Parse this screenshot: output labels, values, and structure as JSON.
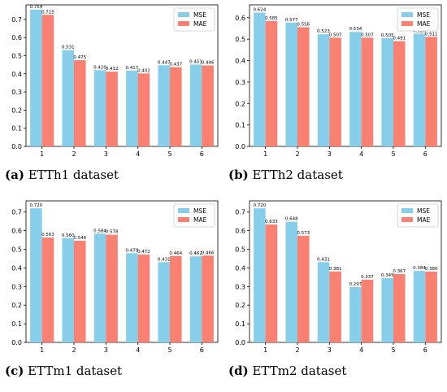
{
  "colors": {
    "mse": "#87CEEB",
    "mae": "#FA8072"
  },
  "chart_data": [
    {
      "type": "bar",
      "panel_label": "(a)",
      "caption": "ETTh1 dataset",
      "categories": [
        "1",
        "2",
        "3",
        "4",
        "5",
        "6"
      ],
      "series": [
        {
          "name": "MSE",
          "values": [
            0.754,
            0.531,
            0.42,
            0.417,
            0.447,
            0.451
          ]
        },
        {
          "name": "MAE",
          "values": [
            0.725,
            0.475,
            0.412,
            0.402,
            0.437,
            0.446
          ]
        }
      ],
      "value_labels": {
        "MSE": [
          "0.754",
          "0.531",
          "0.420",
          "0.417",
          "0.447",
          "0.451"
        ],
        "MAE": [
          "0.725",
          "0.475",
          "0.412",
          "0.402",
          "0.437",
          "0.446"
        ]
      },
      "ylim": [
        0,
        0.78
      ],
      "yticks": [
        "0.0",
        "0.1",
        "0.2",
        "0.3",
        "0.4",
        "0.5",
        "0.6",
        "0.7"
      ],
      "legend": "top-right"
    },
    {
      "type": "bar",
      "panel_label": "(b)",
      "caption": "ETTh2 dataset",
      "categories": [
        "1",
        "2",
        "3",
        "4",
        "5",
        "6"
      ],
      "series": [
        {
          "name": "MSE",
          "values": [
            0.624,
            0.577,
            0.523,
            0.534,
            0.505,
            0.526
          ]
        },
        {
          "name": "MAE",
          "values": [
            0.585,
            0.556,
            0.507,
            0.507,
            0.491,
            0.511
          ]
        }
      ],
      "value_labels": {
        "MSE": [
          "0.624",
          "0.577",
          "0.523",
          "0.534",
          "0.505",
          "0.526"
        ],
        "MAE": [
          "0.585",
          "0.556",
          "0.507",
          "0.507",
          "0.491",
          "0.511"
        ]
      },
      "ylim": [
        0,
        0.66
      ],
      "yticks": [
        "0.0",
        "0.1",
        "0.2",
        "0.3",
        "0.4",
        "0.5",
        "0.6"
      ],
      "legend": "top-right"
    },
    {
      "type": "bar",
      "panel_label": "(c)",
      "caption": "ETTm1 dataset",
      "categories": [
        "1",
        "2",
        "3",
        "4",
        "5",
        "6"
      ],
      "series": [
        {
          "name": "MSE",
          "values": [
            0.72,
            0.56,
            0.584,
            0.479,
            0.431,
            0.462
          ]
        },
        {
          "name": "MAE",
          "values": [
            0.563,
            0.546,
            0.578,
            0.472,
            0.464,
            0.466
          ]
        }
      ],
      "value_labels": {
        "MSE": [
          "0.720",
          "0.560",
          "0.584",
          "0.479",
          "0.431",
          "0.462"
        ],
        "MAE": [
          "0.563",
          "0.546",
          "0.578",
          "0.472",
          "0.464",
          "0.466"
        ]
      },
      "ylim": [
        0,
        0.76
      ],
      "yticks": [
        "0.0",
        "0.1",
        "0.2",
        "0.3",
        "0.4",
        "0.5",
        "0.6",
        "0.7"
      ],
      "legend": "top-right"
    },
    {
      "type": "bar",
      "panel_label": "(d)",
      "caption": "ETTm2 dataset",
      "categories": [
        "1",
        "2",
        "3",
        "4",
        "5",
        "6"
      ],
      "series": [
        {
          "name": "MSE",
          "values": [
            0.72,
            0.648,
            0.431,
            0.297,
            0.345,
            0.384
          ]
        },
        {
          "name": "MAE",
          "values": [
            0.633,
            0.573,
            0.381,
            0.337,
            0.367,
            0.38
          ]
        }
      ],
      "value_labels": {
        "MSE": [
          "0.720",
          "0.648",
          "0.431",
          "0.297",
          "0.345",
          "0.384"
        ],
        "MAE": [
          "0.633",
          "0.573",
          "0.381",
          "0.337",
          "0.367",
          "0.380"
        ]
      },
      "ylim": [
        0,
        0.76
      ],
      "yticks": [
        "0.0",
        "0.1",
        "0.2",
        "0.3",
        "0.4",
        "0.5",
        "0.6",
        "0.7"
      ],
      "legend": "top-right"
    }
  ]
}
